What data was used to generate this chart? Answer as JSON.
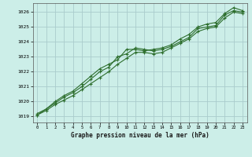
{
  "title": "Graphe pression niveau de la mer (hPa)",
  "background_color": "#cceee8",
  "grid_color": "#aacccc",
  "line_color": "#2d6e2d",
  "xlim": [
    -0.5,
    23.5
  ],
  "ylim": [
    1018.6,
    1026.6
  ],
  "yticks": [
    1019,
    1020,
    1021,
    1022,
    1023,
    1024,
    1025,
    1026
  ],
  "xticks": [
    0,
    1,
    2,
    3,
    4,
    5,
    6,
    7,
    8,
    9,
    10,
    11,
    12,
    13,
    14,
    15,
    16,
    17,
    18,
    19,
    20,
    21,
    22,
    23
  ],
  "series1_x": [
    0,
    1,
    2,
    3,
    4,
    5,
    6,
    7,
    8,
    9,
    10,
    11,
    12,
    13,
    14,
    15,
    16,
    17,
    18,
    19,
    20,
    21,
    22,
    23
  ],
  "series1_y": [
    1019.1,
    1019.5,
    1019.9,
    1020.3,
    1020.6,
    1021.0,
    1021.5,
    1022.0,
    1022.3,
    1023.0,
    1023.2,
    1023.6,
    1023.5,
    1023.4,
    1023.5,
    1023.7,
    1024.0,
    1024.3,
    1024.9,
    1025.0,
    1025.1,
    1025.8,
    1026.1,
    1026.0
  ],
  "series2_x": [
    0,
    1,
    2,
    3,
    4,
    5,
    6,
    7,
    8,
    9,
    10,
    11,
    12,
    13,
    14,
    15,
    16,
    17,
    18,
    19,
    20,
    21,
    22,
    23
  ],
  "series2_y": [
    1019.1,
    1019.4,
    1019.8,
    1020.1,
    1020.4,
    1020.8,
    1021.2,
    1021.6,
    1022.0,
    1022.5,
    1022.9,
    1023.3,
    1023.3,
    1023.2,
    1023.3,
    1023.6,
    1023.9,
    1024.2,
    1024.7,
    1024.9,
    1025.0,
    1025.6,
    1026.0,
    1025.9
  ],
  "series3_x": [
    0,
    1,
    2,
    3,
    4,
    5,
    6,
    7,
    8,
    9,
    10,
    11,
    12,
    13,
    14,
    15,
    16,
    17,
    18,
    19,
    20,
    21,
    22,
    23
  ],
  "series3_y": [
    1019.2,
    1019.5,
    1020.0,
    1020.4,
    1020.7,
    1021.2,
    1021.7,
    1022.2,
    1022.5,
    1022.8,
    1023.5,
    1023.5,
    1023.4,
    1023.5,
    1023.6,
    1023.8,
    1024.2,
    1024.5,
    1025.0,
    1025.2,
    1025.3,
    1025.9,
    1026.3,
    1026.1
  ]
}
